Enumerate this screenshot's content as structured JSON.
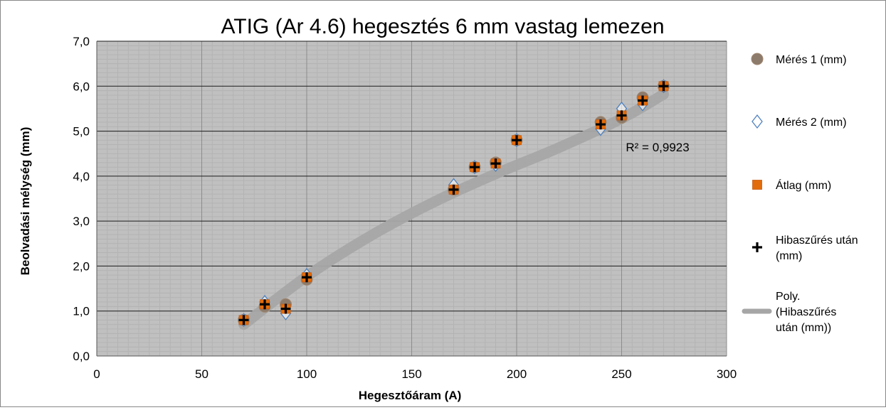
{
  "chart_data": {
    "type": "scatter",
    "title": "ATIG (Ar 4.6) hegesztés 6 mm vastag lemezen",
    "xlabel": "Hegesztőáram (A)",
    "ylabel": "Beolvadási mélység (mm)",
    "xlim": [
      0,
      300
    ],
    "ylim": [
      0,
      7
    ],
    "x_ticks": [
      "0",
      "50",
      "100",
      "150",
      "200",
      "250",
      "300"
    ],
    "y_ticks": [
      "0,0",
      "1,0",
      "2,0",
      "3,0",
      "4,0",
      "5,0",
      "6,0",
      "7,0"
    ],
    "grid": true,
    "legend_position": "right",
    "plot_background": "#c0c0c0",
    "series": [
      {
        "name": "Mérés 1 (mm)",
        "marker": "circle",
        "color": "#8c7b6b",
        "points": [
          [
            70,
            0.8
          ],
          [
            80,
            1.1
          ],
          [
            90,
            1.15
          ],
          [
            100,
            1.7
          ],
          [
            170,
            3.7
          ],
          [
            180,
            4.2
          ],
          [
            190,
            4.3
          ],
          [
            200,
            4.8
          ],
          [
            240,
            5.2
          ],
          [
            250,
            5.3
          ],
          [
            260,
            5.75
          ],
          [
            270,
            6.0
          ]
        ]
      },
      {
        "name": "Mérés 2 (mm)",
        "marker": "diamond",
        "color": "#4f81bd",
        "points": [
          [
            70,
            0.8
          ],
          [
            80,
            1.2
          ],
          [
            90,
            0.95
          ],
          [
            100,
            1.8
          ],
          [
            170,
            3.8
          ],
          [
            180,
            4.2
          ],
          [
            190,
            4.25
          ],
          [
            200,
            4.8
          ],
          [
            240,
            5.05
          ],
          [
            250,
            5.5
          ],
          [
            260,
            5.6
          ],
          [
            270,
            6.0
          ]
        ]
      },
      {
        "name": "Átlag (mm)",
        "marker": "square",
        "color": "#e36c0a",
        "points": [
          [
            70,
            0.8
          ],
          [
            80,
            1.15
          ],
          [
            90,
            1.05
          ],
          [
            100,
            1.75
          ],
          [
            170,
            3.7
          ],
          [
            180,
            4.2
          ],
          [
            190,
            4.28
          ],
          [
            200,
            4.8
          ],
          [
            240,
            5.15
          ],
          [
            250,
            5.35
          ],
          [
            260,
            5.68
          ],
          [
            270,
            6.0
          ]
        ]
      },
      {
        "name": "Hibaszűrés után (mm)",
        "marker": "plus",
        "color": "#000000",
        "points": [
          [
            70,
            0.8
          ],
          [
            80,
            1.15
          ],
          [
            90,
            1.05
          ],
          [
            100,
            1.75
          ],
          [
            170,
            3.7
          ],
          [
            180,
            4.2
          ],
          [
            190,
            4.28
          ],
          [
            200,
            4.8
          ],
          [
            240,
            5.15
          ],
          [
            250,
            5.35
          ],
          [
            260,
            5.68
          ],
          [
            270,
            6.0
          ]
        ]
      }
    ],
    "trendline": {
      "name": "Poly. (Hibaszűrés után (mm))",
      "color": "#a6a6a6",
      "points": [
        [
          70,
          0.7
        ],
        [
          100,
          1.77
        ],
        [
          130,
          2.66
        ],
        [
          160,
          3.41
        ],
        [
          190,
          4.05
        ],
        [
          220,
          4.63
        ],
        [
          250,
          5.28
        ],
        [
          270,
          5.82
        ]
      ],
      "r2_label": "R² = 0,9923"
    },
    "legend": [
      {
        "label_lines": [
          "Mérés 1 (mm)"
        ],
        "marker": "circle",
        "color": "#8c7b6b"
      },
      {
        "label_lines": [
          "Mérés 2 (mm)"
        ],
        "marker": "diamond",
        "color": "#4f81bd"
      },
      {
        "label_lines": [
          "Átlag (mm)"
        ],
        "marker": "square",
        "color": "#e36c0a"
      },
      {
        "label_lines": [
          "Hibaszűrés után",
          "(mm)"
        ],
        "marker": "plus",
        "color": "#000000"
      },
      {
        "label_lines": [
          "Poly.",
          "(Hibaszűrés",
          "után (mm))"
        ],
        "marker": "line",
        "color": "#a6a6a6"
      }
    ]
  }
}
